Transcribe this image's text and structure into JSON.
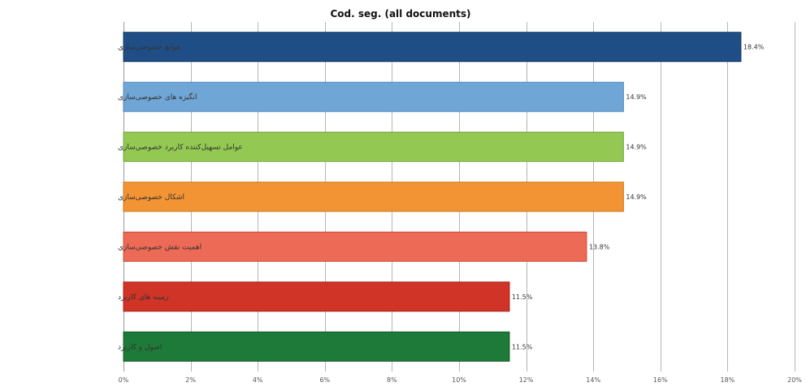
{
  "chart_data": {
    "type": "bar",
    "orientation": "horizontal",
    "title": "Cod. seg. (all documents)",
    "xlabel": "",
    "ylabel": "",
    "xlim": [
      0,
      20
    ],
    "x_ticks": [
      "0%",
      "2%",
      "4%",
      "6%",
      "8%",
      "10%",
      "12%",
      "14%",
      "16%",
      "18%",
      "20%"
    ],
    "grid": true,
    "legend": "none",
    "categories": [
      "موانع خصوصی‌سازی",
      "انگیزه های خصوصی‌سازی",
      "عوامل تسهیل‌کننده کاربرد خصوصی‌سازی",
      "اشکال خصوصی‌سازی",
      "اهمیت نقش خصوصی‌سازی",
      "زمینه های کاربرد",
      "اصول و کاربرد"
    ],
    "values": [
      18.4,
      14.9,
      14.9,
      14.9,
      13.8,
      11.5,
      11.5
    ],
    "value_labels": [
      "18.4%",
      "14.9%",
      "14.9%",
      "14.9%",
      "13.8%",
      "11.5%",
      "11.5%"
    ],
    "colors": [
      "#1f4e87",
      "#6fa6d6",
      "#93c852",
      "#f39434",
      "#ec6a56",
      "#cf3427",
      "#1e7a38"
    ],
    "edge_colors": [
      "#123966",
      "#4f86bd",
      "#72a838",
      "#cf7418",
      "#c84c3a",
      "#a82018",
      "#0f5a24"
    ]
  }
}
